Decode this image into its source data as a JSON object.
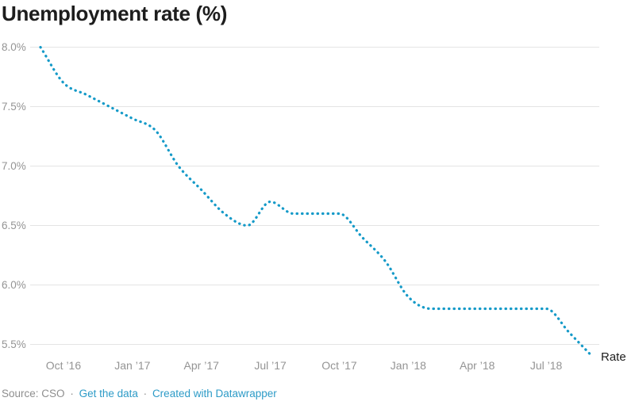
{
  "chart_data": {
    "type": "line",
    "title": "Unemployment rate (%)",
    "x": [
      "2016-09",
      "2016-10",
      "2016-11",
      "2016-12",
      "2017-01",
      "2017-02",
      "2017-03",
      "2017-04",
      "2017-05",
      "2017-06",
      "2017-07",
      "2017-08",
      "2017-09",
      "2017-10",
      "2017-11",
      "2017-12",
      "2018-01",
      "2018-02",
      "2018-03",
      "2018-04",
      "2018-05",
      "2018-06",
      "2018-07",
      "2018-08",
      "2018-09"
    ],
    "series": [
      {
        "name": "Rate",
        "values": [
          8.0,
          7.7,
          7.6,
          7.5,
          7.4,
          7.3,
          7.0,
          6.8,
          6.6,
          6.5,
          6.7,
          6.6,
          6.6,
          6.6,
          6.4,
          6.2,
          5.9,
          5.8,
          5.8,
          5.8,
          5.8,
          5.8,
          5.8,
          5.6,
          5.4
        ]
      }
    ],
    "xlabel": "",
    "ylabel": "",
    "ylim": [
      5.5,
      8.0
    ],
    "grid": true,
    "legend_position": "end-of-line",
    "line_style": "dotted",
    "line_color": "#159ac8",
    "gridline_color": "#e4e4e4",
    "axis_label_color": "#949494",
    "y_ticks": [
      "8.0%",
      "7.5%",
      "7.0%",
      "6.5%",
      "6.0%",
      "5.5%"
    ],
    "x_ticks": [
      {
        "label": "Oct ’16",
        "month_index": 1
      },
      {
        "label": "Jan ’17",
        "month_index": 4
      },
      {
        "label": "Apr ’17",
        "month_index": 7
      },
      {
        "label": "Jul ’17",
        "month_index": 10
      },
      {
        "label": "Oct ’17",
        "month_index": 13
      },
      {
        "label": "Jan ’18",
        "month_index": 16
      },
      {
        "label": "Apr ’18",
        "month_index": 19
      },
      {
        "label": "Jul ’18",
        "month_index": 22
      }
    ]
  },
  "footer": {
    "source_label": "Source:",
    "source": "CSO",
    "separator": "·",
    "links": [
      {
        "label": "Get the data"
      },
      {
        "label": "Created with Datawrapper"
      }
    ],
    "link_color": "#2d9bc7"
  }
}
